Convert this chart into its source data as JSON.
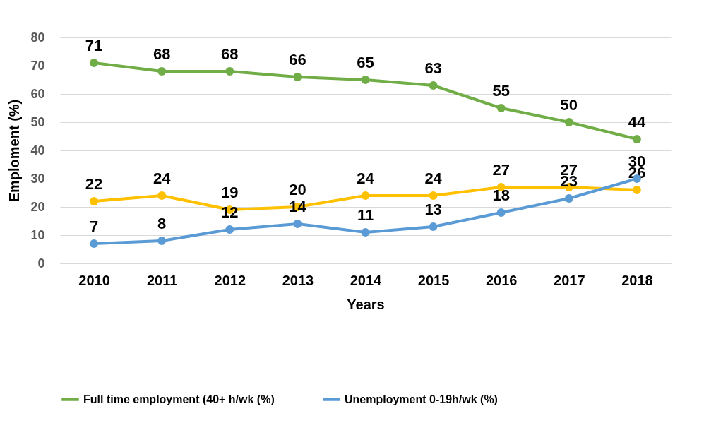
{
  "chart_data": {
    "type": "line",
    "xlabel": "Years",
    "ylabel": "Emploment (%)",
    "categories": [
      "2010",
      "2011",
      "2012",
      "2013",
      "2014",
      "2015",
      "2016",
      "2017",
      "2018"
    ],
    "series": [
      {
        "name": "Full time employment (40+ h/wk (%)",
        "color": "#70ad47",
        "values": [
          71,
          68,
          68,
          66,
          65,
          63,
          55,
          50,
          44
        ]
      },
      {
        "color": "#ffc000",
        "values": [
          22,
          24,
          19,
          20,
          24,
          24,
          27,
          27,
          26
        ]
      },
      {
        "name": "Unemployment 0-19h/wk (%)",
        "color": "#5b9bd5",
        "values": [
          7,
          8,
          12,
          14,
          11,
          13,
          18,
          23,
          30
        ]
      }
    ],
    "ylim": [
      0,
      80
    ],
    "yticks": [
      0,
      10,
      20,
      30,
      40,
      50,
      60,
      70,
      80
    ],
    "grid": "y",
    "legend": "bottom",
    "marker": "circle",
    "line_style": "solid",
    "data_labels": true
  }
}
